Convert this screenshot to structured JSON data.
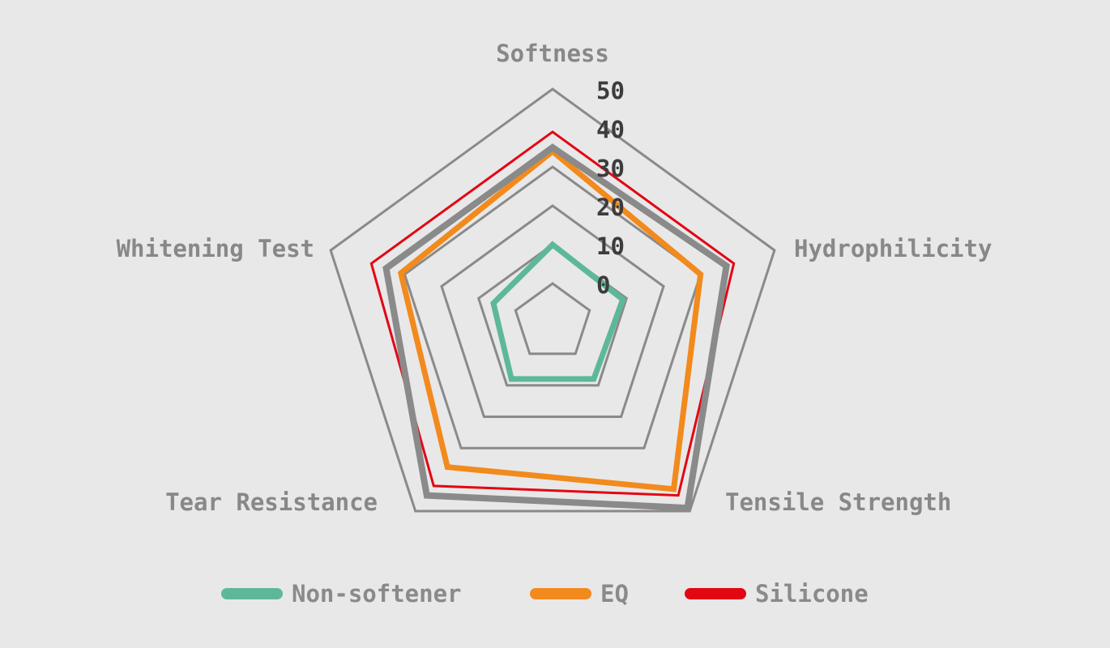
{
  "chart_data": {
    "type": "radar",
    "axes": [
      "Softness",
      "Hydrophilicity",
      "Tensile Strength",
      "Tear Resistance",
      "Whitening Test"
    ],
    "ticks": [
      "0",
      "10",
      "20",
      "30",
      "40",
      "50"
    ],
    "rlim": [
      -10,
      50
    ],
    "gridlines": [
      0,
      10,
      20,
      30,
      50
    ],
    "series": [
      {
        "name": "Non-softener",
        "color": "#5db89b",
        "values": [
          10,
          9,
          8,
          8,
          6
        ]
      },
      {
        "name": "EQ",
        "color": "#f28a1d",
        "values": [
          34,
          30,
          43,
          36,
          31
        ]
      },
      {
        "name": "Silicone",
        "color": "#e30613",
        "values": [
          39,
          39,
          45,
          42,
          39
        ]
      },
      {
        "color": "#8a8a8a",
        "values": [
          35,
          37,
          49,
          45,
          35
        ]
      }
    ],
    "legend_position": "bottom",
    "grid": true
  }
}
